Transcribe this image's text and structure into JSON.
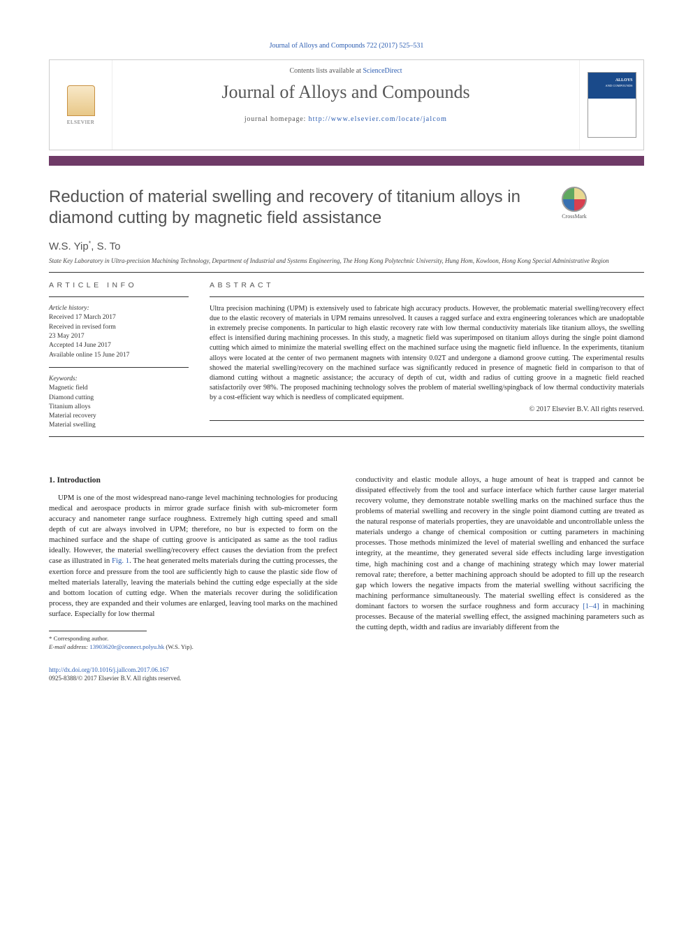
{
  "citation": "Journal of Alloys and Compounds 722 (2017) 525–531",
  "banner": {
    "contents_prefix": "Contents lists available at ",
    "contents_link": "ScienceDirect",
    "journal": "Journal of Alloys and Compounds",
    "homepage_prefix": "journal homepage: ",
    "homepage_url": "http://www.elsevier.com/locate/jalcom",
    "publisher": "ELSEVIER"
  },
  "crossmark_label": "CrossMark",
  "title": "Reduction of material swelling and recovery of titanium alloys in diamond cutting by magnetic field assistance",
  "authors_html": "W.S. Yip<sup>*</sup>, S. To",
  "author_1": "W.S. Yip",
  "author_1_mark": "*",
  "author_sep": ", ",
  "author_2": "S. To",
  "affiliation": "State Key Laboratory in Ultra-precision Machining Technology, Department of Industrial and Systems Engineering, The Hong Kong Polytechnic University, Hung Hom, Kowloon, Hong Kong Special Administrative Region",
  "info": {
    "head": "ARTICLE INFO",
    "history_label": "Article history:",
    "received": "Received 17 March 2017",
    "revised_1": "Received in revised form",
    "revised_2": "23 May 2017",
    "accepted": "Accepted 14 June 2017",
    "online": "Available online 15 June 2017",
    "keywords_label": "Keywords:",
    "keywords": [
      "Magnetic field",
      "Diamond cutting",
      "Titanium alloys",
      "Material recovery",
      "Material swelling"
    ]
  },
  "abstract": {
    "head": "ABSTRACT",
    "text": "Ultra precision machining (UPM) is extensively used to fabricate high accuracy products. However, the problematic material swelling/recovery effect due to the elastic recovery of materials in UPM remains unresolved. It causes a ragged surface and extra engineering tolerances which are unadoptable in extremely precise components. In particular to high elastic recovery rate with low thermal conductivity materials like titanium alloys, the swelling effect is intensified during machining processes. In this study, a magnetic field was superimposed on titanium alloys during the single point diamond cutting which aimed to minimize the material swelling effect on the machined surface using the magnetic field influence. In the experiments, titanium alloys were located at the center of two permanent magnets with intensity 0.02T and undergone a diamond groove cutting. The experimental results showed the material swelling/recovery on the machined surface was significantly reduced in presence of magnetic field in comparison to that of diamond cutting without a magnetic assistance; the accuracy of depth of cut, width and radius of cutting groove in a magnetic field reached satisfactorily over 98%. The proposed machining technology solves the problem of material swelling/spingback of low thermal conductivity materials by a cost-efficient way which is needless of complicated equipment.",
    "copyright": "© 2017 Elsevier B.V. All rights reserved."
  },
  "section1_head": "1. Introduction",
  "col_left": "UPM is one of the most widespread nano-range level machining technologies for producing medical and aerospace products in mirror grade surface finish with sub-micrometer form accuracy and nanometer range surface roughness. Extremely high cutting speed and small depth of cut are always involved in UPM; therefore, no bur is expected to form on the machined surface and the shape of cutting groove is anticipated as same as the tool radius ideally. However, the material swelling/recovery effect causes the deviation from the prefect case as illustrated in ",
  "fig_ref": "Fig. 1",
  "col_left_2": ". The heat generated melts materials during the cutting processes, the exertion force and pressure from the tool are sufficiently high to cause the plastic side flow of melted materials laterally, leaving the materials behind the cutting edge especially at the side and bottom location of cutting edge. When the materials recover during the solidification process, they are expanded and their volumes are enlarged, leaving tool marks on the machined surface. Especially for low thermal",
  "col_right": "conductivity and elastic module alloys, a huge amount of heat is trapped and cannot be dissipated effectively from the tool and surface interface which further cause larger material recovery volume, they demonstrate notable swelling marks on the machined surface thus the problems of material swelling and recovery in the single point diamond cutting are treated as the natural response of materials properties, they are unavoidable and uncontrollable unless the materials undergo a change of chemical composition or cutting parameters in machining processes. Those methods minimized the level of material swelling and enhanced the surface integrity, at the meantime, they generated several side effects including large investigation time, high machining cost and a change of machining strategy which may lower material removal rate; therefore, a better machining approach should be adopted to fill up the research gap which lowers the negative impacts from the material swelling without sacrificing the machining performance simultaneously. The material swelling effect is considered as the dominant factors to worsen the surface roughness and form accuracy ",
  "cite_ref": "[1–4]",
  "col_right_2": " in machining processes. Because of the material swelling effect, the assigned machining parameters such as the cutting depth, width and radius are invariably different from the",
  "footer": {
    "corr": "* Corresponding author.",
    "email_label": "E-mail address: ",
    "email": "13903620r@connect.polyu.hk",
    "email_who": " (W.S. Yip).",
    "doi": "http://dx.doi.org/10.1016/j.jallcom.2017.06.167",
    "issn_line": "0925-8388/© 2017 Elsevier B.V. All rights reserved."
  },
  "colors": {
    "link": "#2c5db1",
    "rule_bar": "#6f3a67",
    "text": "#272727",
    "title": "#525252"
  }
}
